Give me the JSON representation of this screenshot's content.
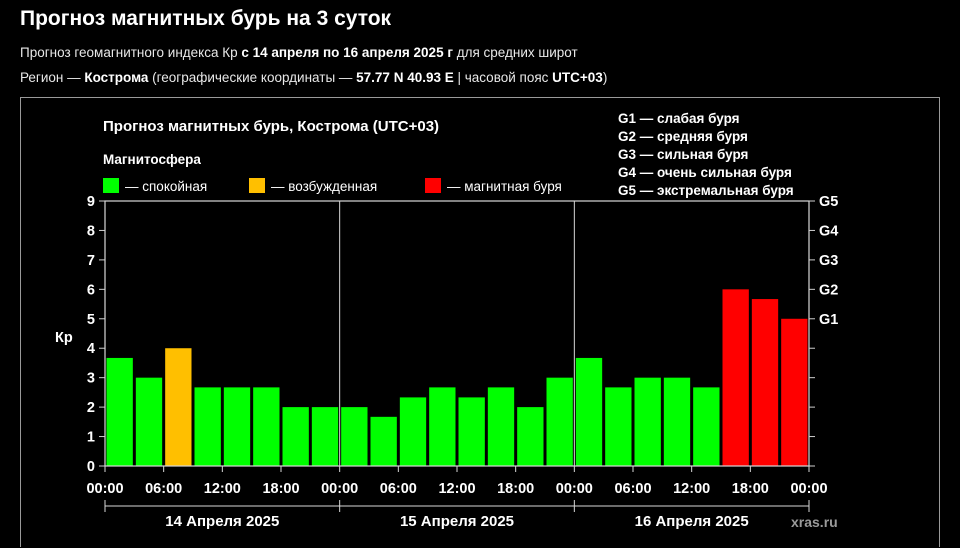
{
  "header": {
    "title": "Прогноз магнитных бурь на 3 суток",
    "sub1_prefix": "Прогноз геомагнитного индекса Кр ",
    "sub1_period": "с 14 апреля по 16 апреля 2025 г",
    "sub1_suffix": " для средних широт",
    "sub2_prefix": "Регион — ",
    "sub2_city": "Кострома",
    "sub2_mid": " (географические координаты — ",
    "sub2_coords": "57.77 N 40.93 E",
    "sub2_tz_label": " | часовой пояс ",
    "sub2_tz": "UTC+03",
    "sub2_end": ")"
  },
  "watermark": "xras.ru",
  "chart_data": {
    "type": "bar",
    "title": "Прогноз магнитных бурь, Кострома (UTC+03)",
    "ylabel": "Кр",
    "ylim": [
      0,
      9
    ],
    "yticks": [
      "0",
      "1",
      "2",
      "3",
      "4",
      "5",
      "6",
      "7",
      "8",
      "9"
    ],
    "xticks": [
      "00:00",
      "06:00",
      "12:00",
      "18:00",
      "00:00",
      "06:00",
      "12:00",
      "18:00",
      "00:00",
      "06:00",
      "12:00",
      "18:00",
      "00:00"
    ],
    "day_labels": [
      "14 Апреля 2025",
      "15 Апреля 2025",
      "16 Апреля 2025"
    ],
    "values": [
      3.67,
      3.0,
      4.0,
      2.67,
      2.67,
      2.67,
      2.0,
      2.0,
      2.0,
      1.67,
      2.33,
      2.67,
      2.33,
      2.67,
      2.0,
      3.0,
      3.67,
      2.67,
      3.0,
      3.0,
      2.67,
      6.0,
      5.67,
      5.0
    ],
    "level_colors": [
      "green",
      "green",
      "orange",
      "green",
      "green",
      "green",
      "green",
      "green",
      "green",
      "green",
      "green",
      "green",
      "green",
      "green",
      "green",
      "green",
      "green",
      "green",
      "green",
      "green",
      "green",
      "red",
      "red",
      "red"
    ],
    "colors": {
      "green": "#00ff00",
      "orange": "#ffbf00",
      "red": "#ff0000"
    },
    "legend": {
      "title": "Магнитосфера",
      "items": [
        {
          "label": "— спокойная",
          "color": "green"
        },
        {
          "label": "— возбужденная",
          "color": "orange"
        },
        {
          "label": "— магнитная буря",
          "color": "red"
        }
      ]
    },
    "g_scale": [
      {
        "level": "G1",
        "label": "G1 — слабая буря",
        "kp": 5
      },
      {
        "level": "G2",
        "label": "G2 — средняя буря",
        "kp": 6
      },
      {
        "level": "G3",
        "label": "G3 — сильная буря",
        "kp": 7
      },
      {
        "level": "G4",
        "label": "G4 — очень сильная буря",
        "kp": 8
      },
      {
        "level": "G5",
        "label": "G5 — экстремальная буря",
        "kp": 9
      }
    ]
  }
}
